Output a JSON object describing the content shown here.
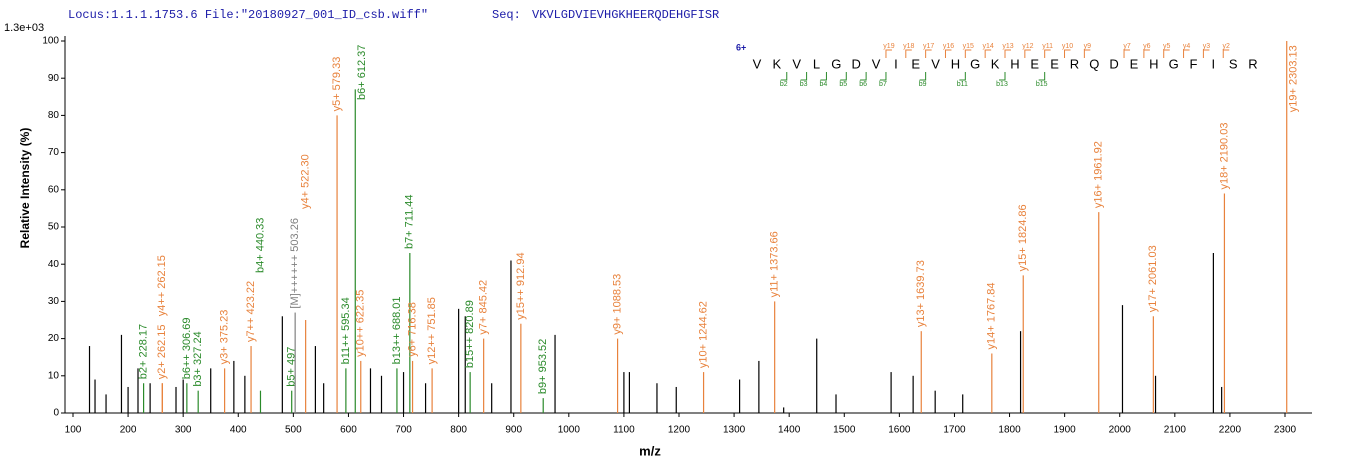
{
  "chart_data": {
    "type": "spectrum",
    "header_locus": "Locus:1.1.1.1753.6 File:\"20180927_001_ID_csb.wiff\"",
    "header_seq_label": "Seq:",
    "header_seq": "VKVLGDVIEVHGKHEERQDEHGFISR",
    "scale_label": "1.3e+03",
    "ylabel": "Relative   Intensity (%)",
    "xlabel": "m/z",
    "xlim": [
      85.5,
      2349
    ],
    "ylim": [
      0,
      100
    ],
    "xticks": [
      100,
      200,
      300,
      400,
      500,
      600,
      700,
      800,
      900,
      1000,
      1100,
      1200,
      1300,
      1400,
      1500,
      1600,
      1700,
      1800,
      1900,
      2000,
      2100,
      2200,
      2300
    ],
    "yticks": [
      0,
      10,
      20,
      30,
      40,
      50,
      60,
      70,
      80,
      90,
      100
    ],
    "colors": {
      "y": "#e8823c",
      "b": "#2a8a2a",
      "other": "#808080",
      "none": "#000000"
    },
    "charge": "6+",
    "sequence": [
      "V",
      "K",
      "V",
      "L",
      "G",
      "D",
      "V",
      "I",
      "E",
      "V",
      "H",
      "G",
      "K",
      "H",
      "E",
      "E",
      "R",
      "Q",
      "D",
      "E",
      "H",
      "G",
      "F",
      "I",
      "S",
      "R"
    ],
    "y_markers": [
      null,
      null,
      null,
      null,
      null,
      null,
      "y19",
      "y18",
      "y17",
      "y16",
      "y15",
      "y14",
      "y13",
      "y12",
      "y11",
      "y10",
      "y9",
      null,
      "y7",
      "y6",
      "y5",
      "y4",
      "y3",
      "y2",
      null
    ],
    "b_markers": [
      null,
      "b2",
      "b3",
      "b4",
      "b5",
      "b6",
      "b7",
      null,
      "b9",
      null,
      "b11",
      null,
      "b13",
      null,
      "b15",
      null,
      null,
      null,
      null,
      null,
      null,
      null,
      null,
      null,
      null
    ],
    "peaks": [
      {
        "mz": 130,
        "intensity": 18,
        "ion": "none"
      },
      {
        "mz": 140,
        "intensity": 9,
        "ion": "none"
      },
      {
        "mz": 160,
        "intensity": 5,
        "ion": "none"
      },
      {
        "mz": 188,
        "intensity": 21,
        "ion": "none"
      },
      {
        "mz": 200,
        "intensity": 7,
        "ion": "none"
      },
      {
        "mz": 218,
        "intensity": 12,
        "ion": "none"
      },
      {
        "mz": 240,
        "intensity": 8,
        "ion": "none"
      },
      {
        "mz": 287,
        "intensity": 7,
        "ion": "none"
      },
      {
        "mz": 300,
        "intensity": 9,
        "ion": "none"
      },
      {
        "mz": 350,
        "intensity": 12,
        "ion": "none"
      },
      {
        "mz": 392,
        "intensity": 14,
        "ion": "none"
      },
      {
        "mz": 412,
        "intensity": 10,
        "ion": "none"
      },
      {
        "mz": 480,
        "intensity": 26,
        "ion": "none"
      },
      {
        "mz": 540,
        "intensity": 18,
        "ion": "none"
      },
      {
        "mz": 555,
        "intensity": 8,
        "ion": "none"
      },
      {
        "mz": 640,
        "intensity": 12,
        "ion": "none"
      },
      {
        "mz": 660,
        "intensity": 10,
        "ion": "none"
      },
      {
        "mz": 700,
        "intensity": 11,
        "ion": "none"
      },
      {
        "mz": 740,
        "intensity": 8,
        "ion": "none"
      },
      {
        "mz": 800,
        "intensity": 28,
        "ion": "none"
      },
      {
        "mz": 812,
        "intensity": 26,
        "ion": "none"
      },
      {
        "mz": 860,
        "intensity": 8,
        "ion": "none"
      },
      {
        "mz": 895,
        "intensity": 41,
        "ion": "none"
      },
      {
        "mz": 975,
        "intensity": 21,
        "ion": "none"
      },
      {
        "mz": 1100,
        "intensity": 11,
        "ion": "none"
      },
      {
        "mz": 1110,
        "intensity": 11,
        "ion": "none"
      },
      {
        "mz": 1160,
        "intensity": 8,
        "ion": "none"
      },
      {
        "mz": 1195,
        "intensity": 7,
        "ion": "none"
      },
      {
        "mz": 1310,
        "intensity": 9,
        "ion": "none"
      },
      {
        "mz": 1345,
        "intensity": 14,
        "ion": "none"
      },
      {
        "mz": 1390,
        "intensity": 1.5,
        "ion": "none"
      },
      {
        "mz": 1450,
        "intensity": 20,
        "ion": "none"
      },
      {
        "mz": 1485,
        "intensity": 5,
        "ion": "none"
      },
      {
        "mz": 1585,
        "intensity": 11,
        "ion": "none"
      },
      {
        "mz": 1625,
        "intensity": 10,
        "ion": "none"
      },
      {
        "mz": 1665,
        "intensity": 6,
        "ion": "none"
      },
      {
        "mz": 1715,
        "intensity": 5,
        "ion": "none"
      },
      {
        "mz": 1820,
        "intensity": 22,
        "ion": "none"
      },
      {
        "mz": 2005,
        "intensity": 29,
        "ion": "none"
      },
      {
        "mz": 2065,
        "intensity": 10,
        "ion": "none"
      },
      {
        "mz": 2170,
        "intensity": 43,
        "ion": "none"
      },
      {
        "mz": 2185,
        "intensity": 7,
        "ion": "none"
      },
      {
        "mz": 228.17,
        "intensity": 8,
        "ion": "b",
        "label": "b2+ 228.17"
      },
      {
        "mz": 262.15,
        "intensity": 8,
        "ion": "y",
        "label": "y2+ 262.15"
      },
      {
        "mz": 262.15,
        "intensity": 8,
        "ion": "y",
        "label": "y4++ 262.15"
      },
      {
        "mz": 306.69,
        "intensity": 8,
        "ion": "b",
        "label": "b6++ 306.69"
      },
      {
        "mz": 327.24,
        "intensity": 6,
        "ion": "b",
        "label": "b3+ 327.24"
      },
      {
        "mz": 375.23,
        "intensity": 12,
        "ion": "y",
        "label": "y3+ 375.23"
      },
      {
        "mz": 423.22,
        "intensity": 18,
        "ion": "y",
        "label": "y7++ 423.22"
      },
      {
        "mz": 440.33,
        "intensity": 6,
        "ion": "b",
        "label": "b4+ 440.33"
      },
      {
        "mz": 497,
        "intensity": 6,
        "ion": "b",
        "label": "b5+ 497"
      },
      {
        "mz": 503.26,
        "intensity": 27,
        "ion": "other",
        "label": "[M]++++++ 503.26"
      },
      {
        "mz": 522.3,
        "intensity": 25,
        "ion": "y",
        "label": "y4+ 522.30"
      },
      {
        "mz": 579.33,
        "intensity": 80,
        "ion": "y",
        "label": "y5+ 579.33"
      },
      {
        "mz": 595.34,
        "intensity": 12,
        "ion": "b",
        "label": "b11++ 595.34"
      },
      {
        "mz": 612.37,
        "intensity": 87,
        "ion": "b",
        "label": "b6+ 612.37"
      },
      {
        "mz": 622.35,
        "intensity": 14,
        "ion": "y",
        "label": "y10++ 622.35"
      },
      {
        "mz": 688.01,
        "intensity": 12,
        "ion": "b",
        "label": "b13++ 688.01"
      },
      {
        "mz": 711.44,
        "intensity": 43,
        "ion": "b",
        "label": "b7+ 711.44"
      },
      {
        "mz": 716.38,
        "intensity": 14,
        "ion": "y",
        "label": "y6+ 716.38"
      },
      {
        "mz": 751.85,
        "intensity": 12,
        "ion": "y",
        "label": "y12++ 751.85"
      },
      {
        "mz": 820.89,
        "intensity": 11,
        "ion": "b",
        "label": "b15++ 820.89"
      },
      {
        "mz": 845.42,
        "intensity": 20,
        "ion": "y",
        "label": "y7+ 845.42"
      },
      {
        "mz": 912.94,
        "intensity": 24,
        "ion": "y",
        "label": "y15++ 912.94"
      },
      {
        "mz": 953.52,
        "intensity": 4,
        "ion": "b",
        "label": "b9+ 953.52"
      },
      {
        "mz": 1088.53,
        "intensity": 20,
        "ion": "y",
        "label": "y9+ 1088.53"
      },
      {
        "mz": 1244.62,
        "intensity": 11,
        "ion": "y",
        "label": "y10+ 1244.62"
      },
      {
        "mz": 1373.66,
        "intensity": 30,
        "ion": "y",
        "label": "y11+ 1373.66"
      },
      {
        "mz": 1639.73,
        "intensity": 22,
        "ion": "y",
        "label": "y13+ 1639.73"
      },
      {
        "mz": 1767.84,
        "intensity": 16,
        "ion": "y",
        "label": "y14+ 1767.84"
      },
      {
        "mz": 1824.86,
        "intensity": 37,
        "ion": "y",
        "label": "y15+ 1824.86"
      },
      {
        "mz": 1961.92,
        "intensity": 54,
        "ion": "y",
        "label": "y16+ 1961.92"
      },
      {
        "mz": 2061.03,
        "intensity": 26,
        "ion": "y",
        "label": "y17+ 2061.03"
      },
      {
        "mz": 2190.03,
        "intensity": 59,
        "ion": "y",
        "label": "y18+ 2190.03"
      },
      {
        "mz": 2303.13,
        "intensity": 100,
        "ion": "y",
        "label": "y19+ 2303.13"
      }
    ]
  }
}
